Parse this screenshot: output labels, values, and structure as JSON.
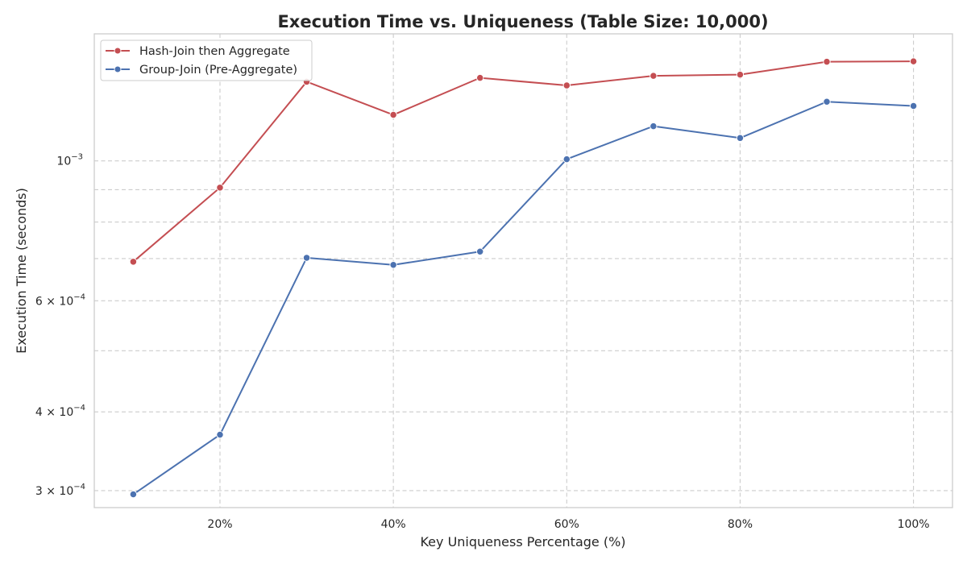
{
  "chart_data": {
    "type": "line",
    "title": "Execution Time vs. Uniqueness (Table Size: 10,000)",
    "xlabel": "Key Uniqueness Percentage (%)",
    "ylabel": "Execution Time (seconds)",
    "y_scale": "log",
    "xlim": [
      5.5,
      104.5
    ],
    "ylim": [
      0.000282,
      0.00159
    ],
    "x": [
      10,
      20,
      30,
      40,
      50,
      60,
      70,
      80,
      90,
      100
    ],
    "x_ticks": [
      {
        "value": 20,
        "label": "20%"
      },
      {
        "value": 40,
        "label": "40%"
      },
      {
        "value": 60,
        "label": "60%"
      },
      {
        "value": 80,
        "label": "80%"
      },
      {
        "value": 100,
        "label": "100%"
      }
    ],
    "y_ticks_major": [
      {
        "value": 0.001,
        "base": "10",
        "exp": "−3"
      }
    ],
    "y_ticks_minor": [
      {
        "value": 0.0003,
        "mant": "3",
        "exp": "−4",
        "labeled": true
      },
      {
        "value": 0.0004,
        "mant": "4",
        "exp": "−4",
        "labeled": true
      },
      {
        "value": 0.0005,
        "labeled": false
      },
      {
        "value": 0.0006,
        "mant": "6",
        "exp": "−4",
        "labeled": true
      },
      {
        "value": 0.0007,
        "labeled": false
      },
      {
        "value": 0.0008,
        "labeled": false
      },
      {
        "value": 0.0009,
        "labeled": false
      }
    ],
    "x_grid": [
      20,
      40,
      60,
      80,
      100
    ],
    "grid": true,
    "legend_position": "top-left",
    "series": [
      {
        "name": "Hash-Join then Aggregate",
        "color": "#c44e52",
        "values": [
          0.000692,
          0.000907,
          0.001335,
          0.001183,
          0.001354,
          0.001317,
          0.001364,
          0.00137,
          0.001436,
          0.001438
        ]
      },
      {
        "name": "Group-Join (Pre-Aggregate)",
        "color": "#4c72b0",
        "values": [
          0.000296,
          0.000368,
          0.000702,
          0.000684,
          0.000718,
          0.001006,
          0.001135,
          0.001087,
          0.001241,
          0.001222
        ]
      }
    ]
  }
}
